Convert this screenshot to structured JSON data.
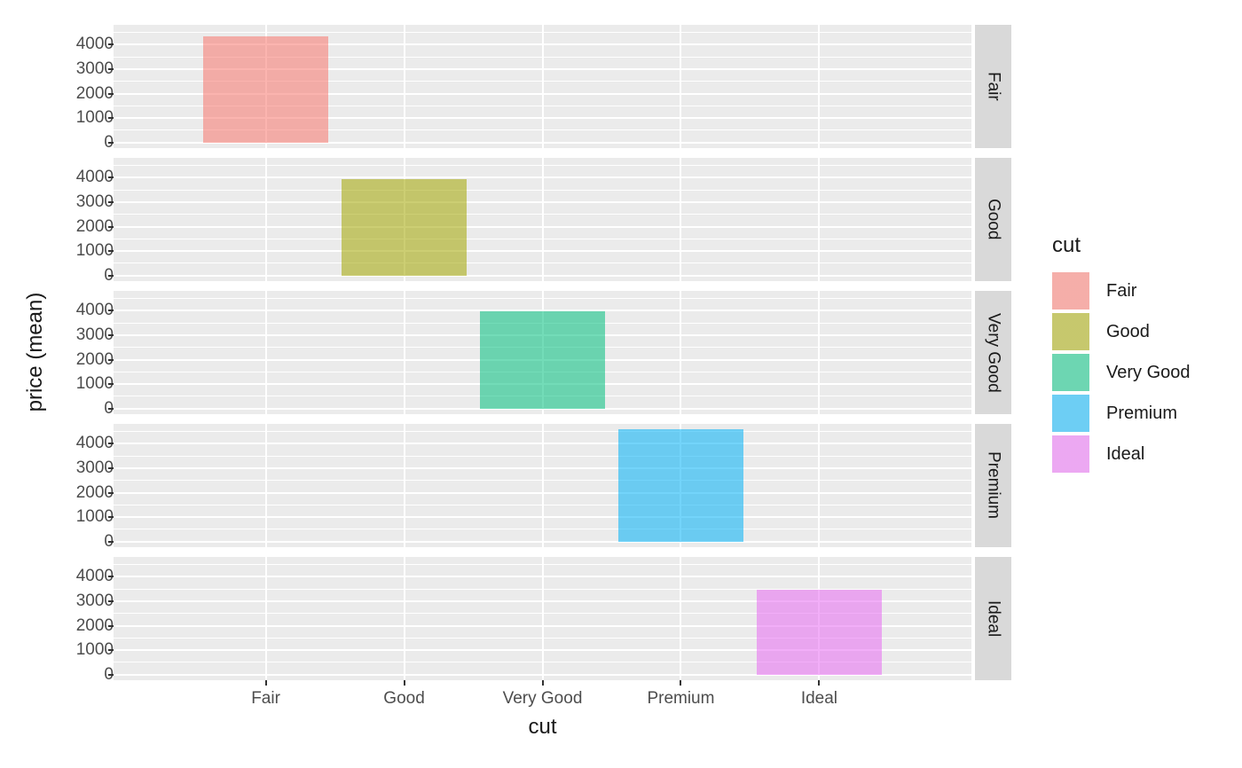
{
  "chart_data": {
    "type": "bar",
    "title": "",
    "xlabel": "cut",
    "ylabel": "price (mean)",
    "categories": [
      "Fair",
      "Good",
      "Very Good",
      "Premium",
      "Ideal"
    ],
    "series": [
      {
        "name": "price (mean)",
        "values": [
          4358.76,
          3928.86,
          3981.76,
          4584.26,
          3457.54
        ]
      }
    ],
    "facets": [
      "Fair",
      "Good",
      "Very Good",
      "Premium",
      "Ideal"
    ],
    "facet_layout": "rows",
    "ylim": [
      -229,
      4813
    ],
    "y_major_ticks": [
      0,
      1000,
      2000,
      3000,
      4000
    ],
    "y_minor_ticks": [
      500,
      1500,
      2500,
      3500,
      4500
    ],
    "grid": true,
    "bar_width_fraction": 0.9,
    "fill_alpha": 0.55,
    "legend": {
      "title": "cut",
      "position": "right",
      "entries": [
        {
          "label": "Fair",
          "color": "#F8766D"
        },
        {
          "label": "Good",
          "color": "#A3A500"
        },
        {
          "label": "Very Good",
          "color": "#00BF7D"
        },
        {
          "label": "Premium",
          "color": "#00B0F6"
        },
        {
          "label": "Ideal",
          "color": "#E76BF3"
        }
      ]
    }
  },
  "theme": {
    "background": "#FFFFFF",
    "panel_bg": "#EBEBEB",
    "grid_color": "#FFFFFF",
    "strip_bg": "#D9D9D9",
    "strip_text_color": "#1A1A1A",
    "tick_label_color": "#4D4D4D",
    "tick_mark_color": "#333333",
    "axis_title_color": "#1A1A1A"
  }
}
